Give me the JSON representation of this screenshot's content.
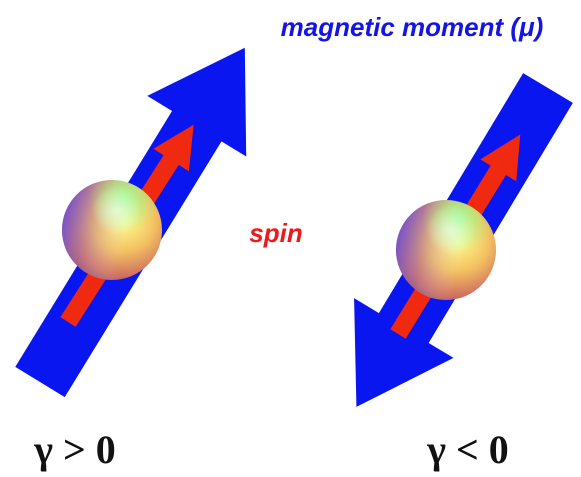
{
  "labels": {
    "magnetic_moment": "magnetic moment (μ)",
    "spin": "spin",
    "gamma_positive": "γ > 0",
    "gamma_negative": "γ < 0"
  }
}
